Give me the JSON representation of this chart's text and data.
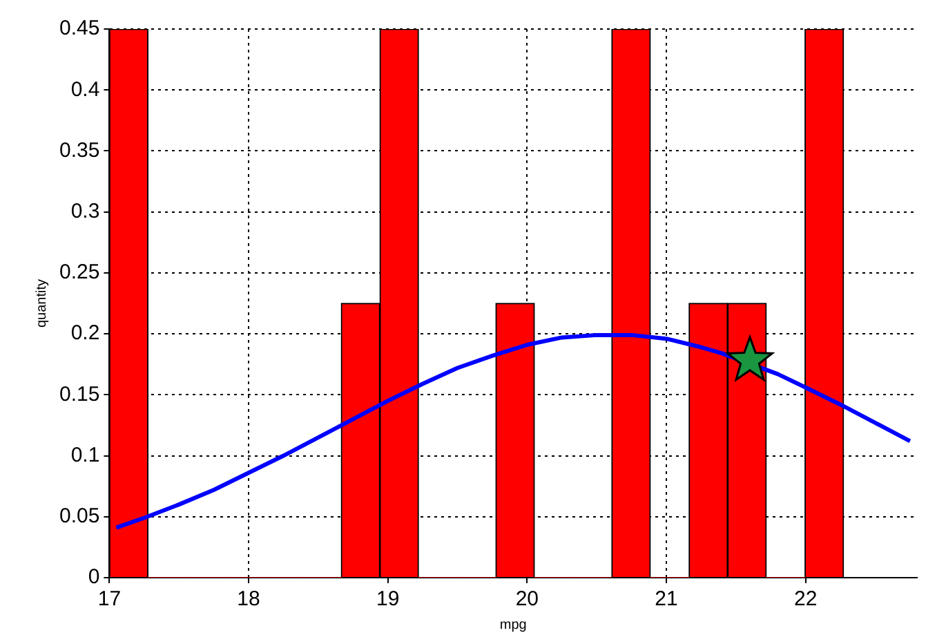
{
  "chart_data": {
    "type": "histogram",
    "xlabel": "mpg",
    "ylabel": "quantity",
    "bins": [
      17,
      17.278,
      17.555,
      17.833,
      18.11,
      18.388,
      18.665,
      18.943,
      19.22,
      19.498,
      19.775,
      20.053,
      20.33,
      20.608,
      20.885,
      21.163,
      21.44,
      21.718,
      21.995,
      22.273
    ],
    "values": [
      0.45,
      0,
      0,
      0,
      0,
      0,
      0.225,
      0.45,
      0,
      0,
      0.225,
      0,
      0,
      0.45,
      0,
      0.225,
      0.225,
      0,
      0.45
    ],
    "color": "#ff0000",
    "series": [
      {
        "type": "line",
        "color": "#0000ff",
        "x": [
          17.05,
          17.25,
          17.5,
          17.75,
          18,
          18.25,
          18.5,
          18.75,
          19,
          19.25,
          19.5,
          19.75,
          20,
          20.25,
          20.5,
          20.75,
          21,
          21.25,
          21.4,
          21.8,
          22,
          22.25,
          22.5,
          22.75
        ],
        "values": [
          0.041,
          0.049,
          0.06,
          0.072,
          0.086,
          0.1,
          0.115,
          0.13,
          0.145,
          0.159,
          0.172,
          0.182,
          0.191,
          0.197,
          0.199,
          0.199,
          0.196,
          0.189,
          0.184,
          0.167,
          0.156,
          0.142,
          0.127,
          0.112
        ],
        "marker": "none"
      },
      {
        "type": "scatter",
        "color": "#1a9641",
        "x": [
          21.6
        ],
        "values": [
          0.178
        ],
        "marker": "star"
      }
    ],
    "xlim": [
      17,
      22.8
    ],
    "xticks": [
      17,
      18,
      19,
      20,
      21,
      22
    ],
    "ylim": [
      0,
      0.45
    ],
    "yticks": [
      0,
      0.05,
      0.1,
      0.15,
      0.2,
      0.25,
      0.3,
      0.35,
      0.4,
      0.45
    ],
    "grid": true,
    "legend": false
  }
}
